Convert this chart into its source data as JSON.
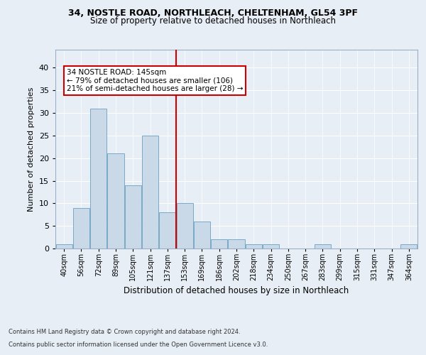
{
  "title_line1": "34, NOSTLE ROAD, NORTHLEACH, CHELTENHAM, GL54 3PF",
  "title_line2": "Size of property relative to detached houses in Northleach",
  "xlabel": "Distribution of detached houses by size in Northleach",
  "ylabel": "Number of detached properties",
  "categories": [
    "40sqm",
    "56sqm",
    "72sqm",
    "89sqm",
    "105sqm",
    "121sqm",
    "137sqm",
    "153sqm",
    "169sqm",
    "186sqm",
    "202sqm",
    "218sqm",
    "234sqm",
    "250sqm",
    "267sqm",
    "283sqm",
    "299sqm",
    "315sqm",
    "331sqm",
    "347sqm",
    "364sqm"
  ],
  "values": [
    1,
    9,
    31,
    21,
    14,
    25,
    8,
    10,
    6,
    2,
    2,
    1,
    1,
    0,
    0,
    1,
    0,
    0,
    0,
    0,
    1
  ],
  "bar_color": "#c9d9e8",
  "bar_edgecolor": "#7aaac8",
  "background_color": "#e8eef5",
  "grid_color": "#ffffff",
  "vline_color": "#cc0000",
  "annotation_text": "34 NOSTLE ROAD: 145sqm\n← 79% of detached houses are smaller (106)\n21% of semi-detached houses are larger (28) →",
  "annotation_box_color": "#ffffff",
  "annotation_box_edgecolor": "#cc0000",
  "footer_line1": "Contains HM Land Registry data © Crown copyright and database right 2024.",
  "footer_line2": "Contains public sector information licensed under the Open Government Licence v3.0.",
  "ylim": [
    0,
    44
  ],
  "yticks": [
    0,
    5,
    10,
    15,
    20,
    25,
    30,
    35,
    40
  ],
  "fig_bg_color": "#e8eef5"
}
